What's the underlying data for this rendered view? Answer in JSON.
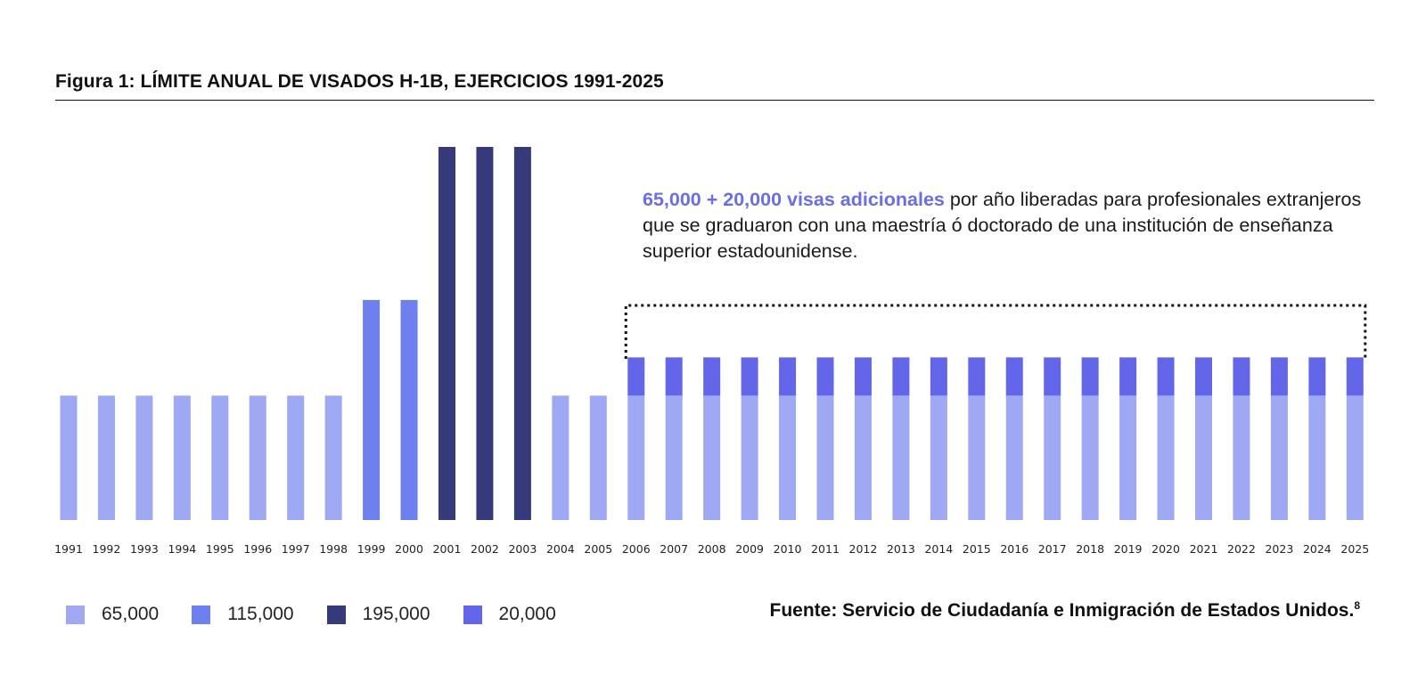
{
  "header": {
    "title": "Figura 1: LÍMITE ANUAL DE VISADOS H-1B, EJERCICIOS 1991-2025"
  },
  "annotation": {
    "highlight": "65,000 + 20,000 visas adicionales",
    "text": " por año liberadas para profesionales extranjeros que se graduaron con una maestría ó doctorado de una institución de enseñanza superior estadounidense."
  },
  "source": {
    "text": "Fuente: Servicio de Ciudadanía e Inmigración de Estados Unidos.",
    "footnote": "8"
  },
  "colors": {
    "base_65000": "#9ea8f3",
    "cap_115000": "#6d80ee",
    "cap_195000": "#363a7b",
    "additional_20000": "#6466e9",
    "highlight_text": "#6a6de6"
  },
  "chart_data": {
    "type": "bar",
    "stacked": true,
    "categories": [
      "1991",
      "1992",
      "1993",
      "1994",
      "1995",
      "1996",
      "1997",
      "1998",
      "1999",
      "2000",
      "2001",
      "2002",
      "2003",
      "2004",
      "2005",
      "2006",
      "2007",
      "2008",
      "2009",
      "2010",
      "2011",
      "2012",
      "2013",
      "2014",
      "2015",
      "2016",
      "2017",
      "2018",
      "2019",
      "2020",
      "2021",
      "2022",
      "2023",
      "2024",
      "2025"
    ],
    "series": [
      {
        "name": "65,000",
        "color": "#9ea8f3",
        "values": [
          65000,
          65000,
          65000,
          65000,
          65000,
          65000,
          65000,
          65000,
          0,
          0,
          0,
          0,
          0,
          65000,
          65000,
          65000,
          65000,
          65000,
          65000,
          65000,
          65000,
          65000,
          65000,
          65000,
          65000,
          65000,
          65000,
          65000,
          65000,
          65000,
          65000,
          65000,
          65000,
          65000,
          65000
        ]
      },
      {
        "name": "115,000",
        "color": "#6d80ee",
        "values": [
          0,
          0,
          0,
          0,
          0,
          0,
          0,
          0,
          115000,
          115000,
          0,
          0,
          0,
          0,
          0,
          0,
          0,
          0,
          0,
          0,
          0,
          0,
          0,
          0,
          0,
          0,
          0,
          0,
          0,
          0,
          0,
          0,
          0,
          0,
          0
        ]
      },
      {
        "name": "195,000",
        "color": "#363a7b",
        "values": [
          0,
          0,
          0,
          0,
          0,
          0,
          0,
          0,
          0,
          0,
          195000,
          195000,
          195000,
          0,
          0,
          0,
          0,
          0,
          0,
          0,
          0,
          0,
          0,
          0,
          0,
          0,
          0,
          0,
          0,
          0,
          0,
          0,
          0,
          0,
          0
        ]
      },
      {
        "name": "20,000",
        "color": "#6466e9",
        "values": [
          0,
          0,
          0,
          0,
          0,
          0,
          0,
          0,
          0,
          0,
          0,
          0,
          0,
          0,
          0,
          20000,
          20000,
          20000,
          20000,
          20000,
          20000,
          20000,
          20000,
          20000,
          20000,
          20000,
          20000,
          20000,
          20000,
          20000,
          20000,
          20000,
          20000,
          20000,
          20000
        ]
      }
    ],
    "ylim": [
      0,
      195000
    ],
    "grid": false,
    "legend_position": "bottom-left"
  }
}
